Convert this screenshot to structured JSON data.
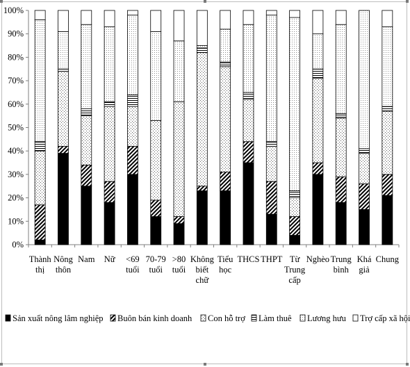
{
  "chart_data": {
    "type": "bar",
    "stacked": true,
    "title": "",
    "xlabel": "",
    "ylabel": "",
    "ylim": [
      0,
      1
    ],
    "y_ticks": [
      "0%",
      "10%",
      "20%",
      "30%",
      "40%",
      "50%",
      "60%",
      "70%",
      "80%",
      "90%",
      "100%"
    ],
    "grid": false,
    "legend_position": "bottom",
    "categories": [
      [
        "Thành",
        "thị"
      ],
      [
        "Nông",
        "thôn"
      ],
      [
        "Nam"
      ],
      [
        "Nữ"
      ],
      [
        "<69",
        "tuổi"
      ],
      [
        "70-79",
        "tuổi"
      ],
      [
        ">80",
        "tuổi"
      ],
      [
        "Không",
        "biết",
        "chữ"
      ],
      [
        "Tiểu",
        "học"
      ],
      [
        "THCS"
      ],
      [
        "THPT"
      ],
      [
        "Từ",
        "Trung",
        "cấp"
      ],
      [
        "Nghèo"
      ],
      [
        "Trung",
        "bình"
      ],
      [
        "Khá",
        "giả"
      ],
      [
        "Chung"
      ]
    ],
    "series": [
      {
        "name": "Sản xuất nông lâm nghiệp",
        "pattern": "solid-black",
        "values": [
          0.02,
          0.39,
          0.25,
          0.18,
          0.3,
          0.12,
          0.09,
          0.23,
          0.23,
          0.35,
          0.13,
          0.04,
          0.3,
          0.18,
          0.15,
          0.21
        ]
      },
      {
        "name": "Buôn bán kinh doanh",
        "pattern": "diagonal-hatch",
        "values": [
          0.15,
          0.03,
          0.09,
          0.09,
          0.12,
          0.07,
          0.03,
          0.02,
          0.08,
          0.09,
          0.14,
          0.08,
          0.05,
          0.11,
          0.11,
          0.09
        ]
      },
      {
        "name": "Con hỗ trợ",
        "pattern": "dots",
        "values": [
          0.23,
          0.32,
          0.21,
          0.32,
          0.17,
          0.34,
          0.49,
          0.57,
          0.45,
          0.18,
          0.15,
          0.08,
          0.36,
          0.25,
          0.13,
          0.27
        ]
      },
      {
        "name": "Làm thuê",
        "pattern": "horizontal-lines",
        "values": [
          0.04,
          0.01,
          0.03,
          0.02,
          0.05,
          0.0,
          0.0,
          0.02,
          0.02,
          0.03,
          0.02,
          0.03,
          0.04,
          0.02,
          0.02,
          0.02
        ]
      },
      {
        "name": "Lương hưu",
        "pattern": "dense-dots",
        "values": [
          0.52,
          0.16,
          0.36,
          0.32,
          0.34,
          0.38,
          0.26,
          0.01,
          0.14,
          0.29,
          0.54,
          0.74,
          0.15,
          0.38,
          0.59,
          0.34
        ]
      },
      {
        "name": "Trợ cấp xã hội",
        "pattern": "white",
        "values": [
          0.04,
          0.09,
          0.06,
          0.07,
          0.02,
          0.09,
          0.13,
          0.15,
          0.08,
          0.06,
          0.02,
          0.03,
          0.1,
          0.06,
          0.0,
          0.07
        ]
      }
    ]
  }
}
